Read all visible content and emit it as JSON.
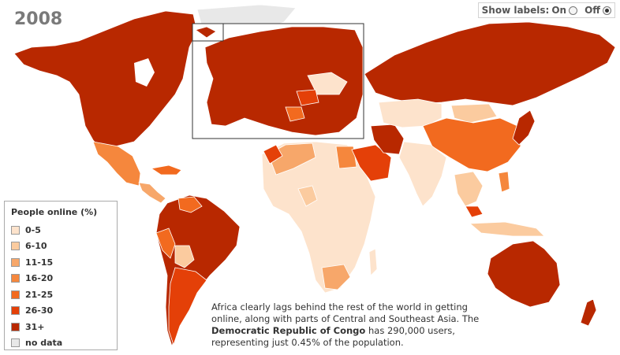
{
  "year": "2008",
  "labels_toggle": {
    "title": "Show labels:",
    "on_label": "On",
    "off_label": "Off",
    "selected": "Off"
  },
  "legend": {
    "title": "People online (%)",
    "items": [
      {
        "label": "0-5",
        "color": "#fde3cc"
      },
      {
        "label": "6-10",
        "color": "#fbcb9f"
      },
      {
        "label": "11-15",
        "color": "#f7a76a"
      },
      {
        "label": "16-20",
        "color": "#f5873d"
      },
      {
        "label": "21-25",
        "color": "#f26a1f"
      },
      {
        "label": "26-30",
        "color": "#e44008"
      },
      {
        "label": "31+",
        "color": "#b82800"
      },
      {
        "label": "no data",
        "color": "#e8e8e8"
      }
    ]
  },
  "caption": {
    "text1": "Africa clearly lags behind the rest of the world in getting online, along with parts of Central and Southeast Asia. The ",
    "bold": "Democratic Republic of Congo",
    "text2": " has 290,000 users, representing just 0.45% of the population."
  }
}
